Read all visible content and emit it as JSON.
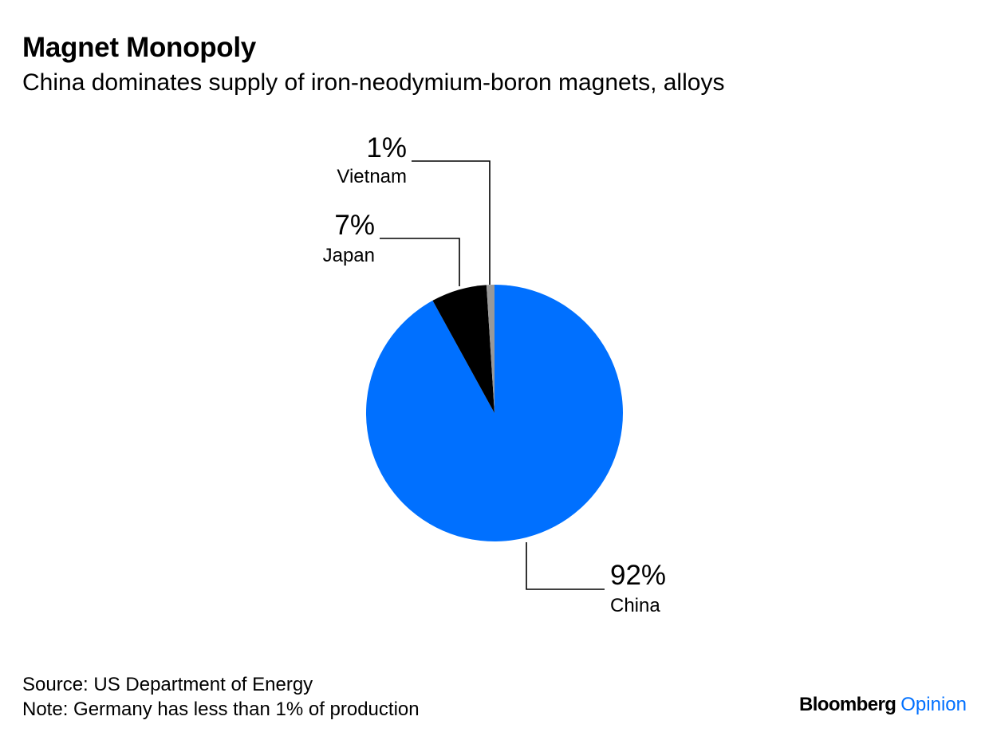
{
  "header": {
    "title": "Magnet Monopoly",
    "subtitle": "China dominates supply of iron-neodymium-boron magnets, alloys"
  },
  "chart_data": {
    "type": "pie",
    "start": "12 o'clock",
    "direction": "clockwise",
    "slices": [
      {
        "label": "China",
        "value": 92,
        "value_label": "92%",
        "color": "#0070ff"
      },
      {
        "label": "Japan",
        "value": 7,
        "value_label": "7%",
        "color": "#000000"
      },
      {
        "label": "Vietnam",
        "value": 1,
        "value_label": "1%",
        "color": "#999999"
      }
    ]
  },
  "footer": {
    "source": "Source: US Department of Energy",
    "note": "Note: Germany has less than 1% of production"
  },
  "brand": {
    "name": "Bloomberg",
    "suffix": "Opinion",
    "suffix_color": "#0070ff"
  }
}
